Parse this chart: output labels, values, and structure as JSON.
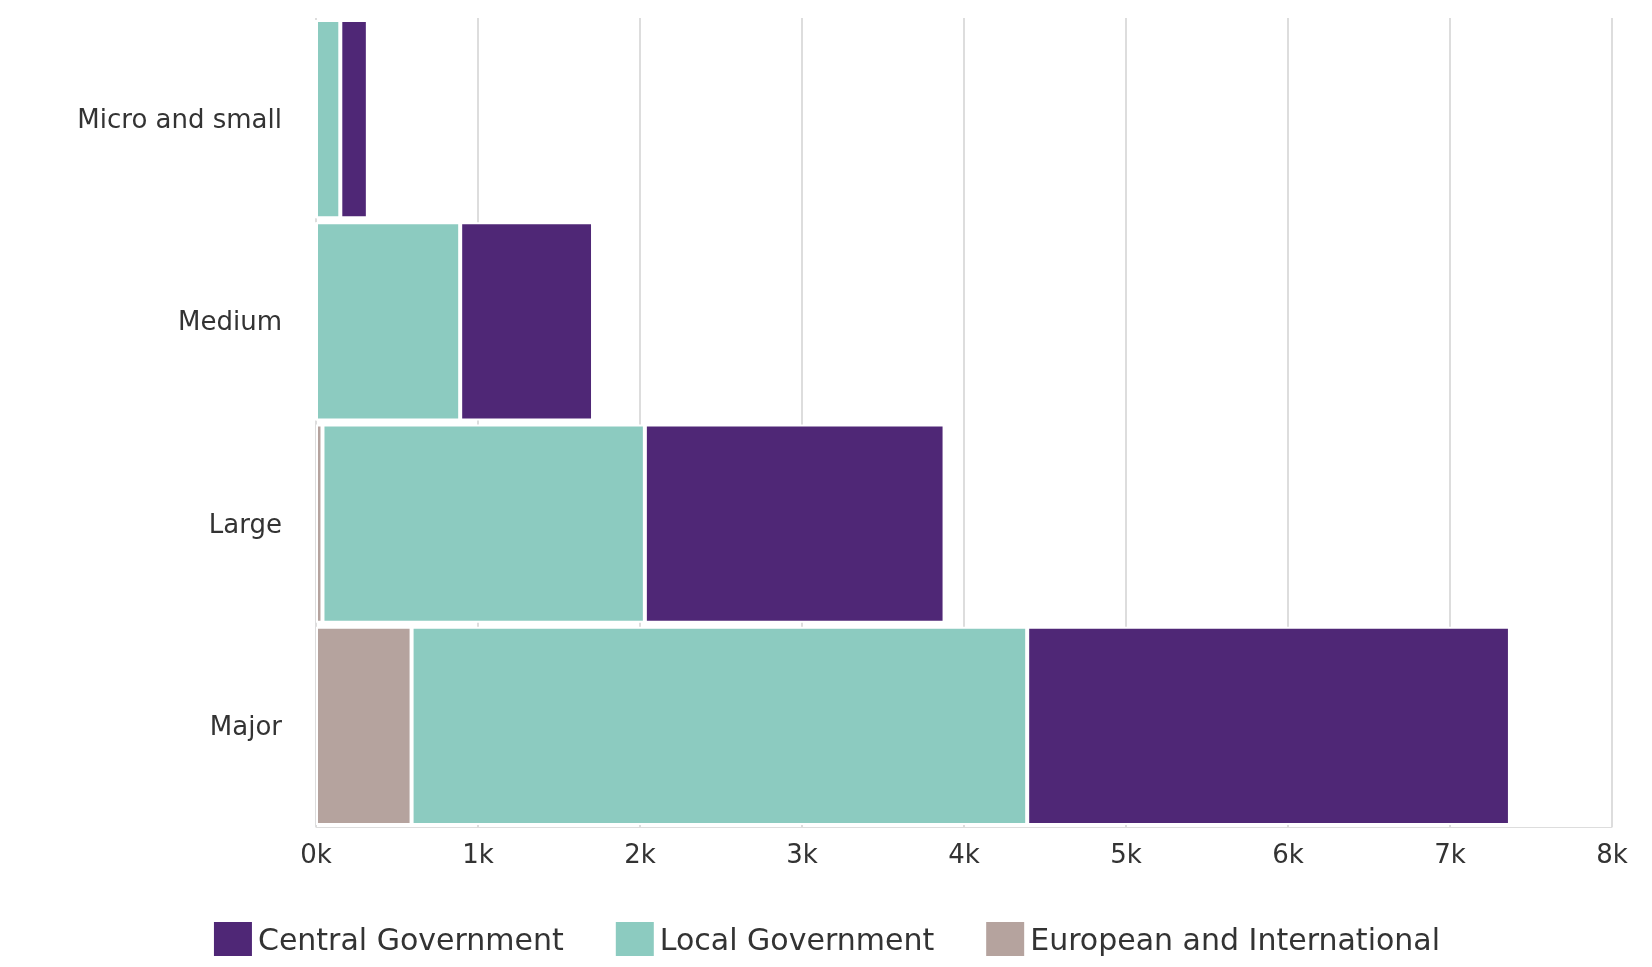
{
  "chart_data": {
    "type": "bar",
    "orientation": "horizontal",
    "stacked": true,
    "categories": [
      "Micro and small",
      "Medium",
      "Large",
      "Major"
    ],
    "series": [
      {
        "name": "European and International",
        "color": "#b5a39e",
        "values": [
          0,
          0,
          0.04,
          0.59
        ]
      },
      {
        "name": "Local Government",
        "color": "#8ccbc0",
        "values": [
          0.15,
          0.89,
          1.99,
          3.8
        ]
      },
      {
        "name": "Central Government",
        "color": "#4f2776",
        "values": [
          0.17,
          0.82,
          1.85,
          2.98
        ]
      }
    ],
    "xlim": [
      0,
      8
    ],
    "xticks": [
      {
        "value": 0,
        "label": "0k"
      },
      {
        "value": 1,
        "label": "1k"
      },
      {
        "value": 2,
        "label": "2k"
      },
      {
        "value": 3,
        "label": "3k"
      },
      {
        "value": 4,
        "label": "4k"
      },
      {
        "value": 5,
        "label": "5k"
      },
      {
        "value": 6,
        "label": "6k"
      },
      {
        "value": 7,
        "label": "7k"
      },
      {
        "value": 8,
        "label": "8k"
      }
    ],
    "grid": "x",
    "legend": "bottom"
  }
}
